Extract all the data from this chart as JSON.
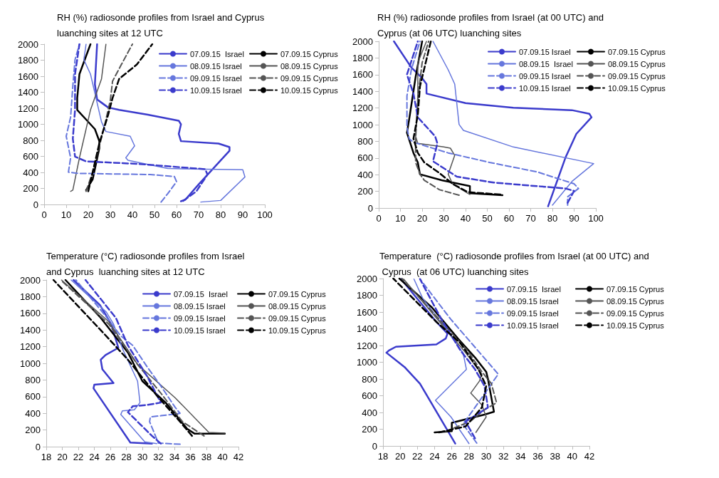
{
  "chart_data": [
    {
      "type": "line",
      "title": "RH (%) radiosonde profiles from Israel and Cyprus luanching sites at 12 UTC",
      "xlim": [
        0,
        100
      ],
      "xticks": [
        0,
        10,
        20,
        30,
        40,
        50,
        60,
        70,
        80,
        90,
        100
      ],
      "ylim": [
        0,
        2000
      ],
      "yticks": [
        0,
        200,
        400,
        600,
        800,
        1000,
        1200,
        1400,
        1600,
        1800,
        2000
      ],
      "legend": "top right",
      "marker": "none",
      "series": [
        {
          "name": "07.09.15  Israel",
          "color": "#3b3bcc",
          "line_style": "solid",
          "x": [
            62,
            64,
            70,
            84,
            84,
            79,
            62,
            61,
            62,
            61,
            47,
            34,
            29,
            24,
            23,
            24
          ],
          "values": [
            40,
            60,
            250,
            670,
            715,
            760,
            790,
            880,
            1000,
            1045,
            1120,
            1180,
            1210,
            1310,
            1500,
            2000
          ]
        },
        {
          "name": "07.09.15 Cyprus",
          "color": "#000000",
          "line_style": "solid",
          "x": [
            19,
            22,
            25,
            25,
            23,
            19,
            15,
            15,
            16,
            21
          ],
          "values": [
            179,
            313,
            701,
            791,
            940,
            1060,
            1179,
            1328,
            1627,
            2000
          ]
        },
        {
          "name": "08.09.15 Israel",
          "color": "#6677dd",
          "line_style": "solid",
          "x": [
            71,
            80,
            91,
            90,
            56,
            38,
            37,
            41,
            39,
            28,
            26,
            24,
            21,
            18,
            19
          ],
          "values": [
            30,
            50,
            343,
            433,
            448,
            552,
            582,
            731,
            851,
            910,
            1030,
            1269,
            1627,
            1806,
            2000
          ]
        },
        {
          "name": "08.09.15 Cyprus",
          "color": "#555555",
          "line_style": "solid",
          "x": [
            12,
            13,
            16,
            21,
            26,
            28
          ],
          "values": [
            164,
            179,
            582,
            1179,
            1567,
            2000
          ]
        },
        {
          "name": "09.09.15 Israel",
          "color": "#6677dd",
          "line_style": "dashed",
          "x": [
            53,
            56,
            60,
            59,
            48,
            15,
            11,
            12,
            10,
            12,
            13,
            14,
            16
          ],
          "values": [
            30,
            134,
            284,
            349,
            373,
            388,
            403,
            582,
            851,
            1090,
            1478,
            1806,
            2000
          ]
        },
        {
          "name": "09.09.15 Cyprus",
          "color": "#555555",
          "line_style": "dashed",
          "x": [
            19,
            22,
            27,
            30,
            31,
            35,
            40
          ],
          "values": [
            164,
            403,
            940,
            1299,
            1538,
            1746,
            2000
          ]
        },
        {
          "name": "10.09.15 Israel",
          "color": "#3b3bcc",
          "line_style": "dashed",
          "x": [
            63,
            69,
            74,
            73,
            42,
            19,
            14,
            13,
            14,
            14,
            16
          ],
          "values": [
            45,
            164,
            373,
            440,
            507,
            537,
            597,
            821,
            1179,
            1627,
            2000
          ]
        },
        {
          "name": "10.09.15 Cyprus",
          "color": "#000000",
          "line_style": "dashed",
          "x": [
            20,
            22,
            25,
            29,
            31,
            34,
            42,
            49
          ],
          "values": [
            164,
            403,
            761,
            1119,
            1328,
            1567,
            1746,
            2000
          ]
        }
      ]
    },
    {
      "type": "line",
      "title": "RH (%) radiosonde profiles from Israel (at 00 UTC) and Cyprus (at 06 UTC) luanching sites",
      "xlim": [
        0,
        100
      ],
      "xticks": [
        0,
        10,
        20,
        30,
        40,
        50,
        60,
        70,
        80,
        90,
        100
      ],
      "ylim": [
        0,
        2000
      ],
      "yticks": [
        0,
        200,
        400,
        600,
        800,
        1000,
        1200,
        1400,
        1600,
        1800,
        2000
      ],
      "legend": "top right",
      "marker": "none",
      "series": [
        {
          "name": "07.09.15 Israel",
          "color": "#3b3bcc",
          "line_style": "solid",
          "x": [
            78,
            86,
            91,
            98,
            97,
            89,
            62,
            40,
            22,
            22,
            20,
            15,
            7
          ],
          "values": [
            20,
            604,
            889,
            1088,
            1131,
            1174,
            1202,
            1259,
            1373,
            1487,
            1558,
            1687,
            2000
          ]
        },
        {
          "name": "07.09.15 Cyprus",
          "color": "#000000",
          "line_style": "solid",
          "x": [
            57,
            42,
            42,
            29,
            19,
            18,
            16,
            13,
            14,
            17,
            20
          ],
          "values": [
            154,
            177,
            262,
            333,
            405,
            547,
            661,
            903,
            1060,
            1573,
            2000
          ]
        },
        {
          "name": "08.09.15  Israel",
          "color": "#6677dd",
          "line_style": "solid",
          "x": [
            80,
            89,
            99,
            62,
            39,
            37,
            35,
            32,
            25
          ],
          "values": [
            34,
            319,
            533,
            732,
            932,
            1003,
            1487,
            1658,
            2000
          ]
        },
        {
          "name": "08.09.15 Cyprus",
          "color": "#555555",
          "line_style": "solid",
          "x": [
            42,
            34,
            32,
            35,
            33,
            30,
            18,
            17,
            18,
            18,
            22
          ],
          "values": [
            162,
            290,
            405,
            632,
            718,
            732,
            775,
            860,
            1316,
            1744,
            2000
          ]
        },
        {
          "name": "09.09.15 Israel",
          "color": "#6677dd",
          "line_style": "dashed",
          "x": [
            87,
            87,
            92,
            90,
            73,
            51,
            32,
            16,
            14,
            13,
            13,
            15,
            19
          ],
          "values": [
            34,
            134,
            234,
            290,
            433,
            547,
            661,
            789,
            832,
            974,
            1345,
            1658,
            2000
          ]
        },
        {
          "name": "09.09.15 Cyprus",
          "color": "#555555",
          "line_style": "dashed",
          "x": [
            37,
            28,
            21,
            19,
            17,
            17,
            18,
            20,
            23
          ],
          "values": [
            154,
            219,
            333,
            405,
            547,
            832,
            1316,
            1744,
            2000
          ]
        },
        {
          "name": "10.09.15 Israel",
          "color": "#3b3bcc",
          "line_style": "dashed",
          "x": [
            87,
            90,
            86,
            73,
            53,
            36,
            25,
            27,
            26,
            18,
            16,
            13,
            18
          ],
          "values": [
            63,
            205,
            234,
            262,
            305,
            376,
            561,
            775,
            860,
            1088,
            1373,
            1601,
            2000
          ]
        },
        {
          "name": "10.09.15 Cyprus",
          "color": "#000000",
          "line_style": "dashed",
          "x": [
            56,
            41,
            34,
            28,
            21,
            18,
            16,
            18,
            19,
            24
          ],
          "values": [
            162,
            191,
            290,
            419,
            547,
            661,
            832,
            1117,
            1459,
            2000
          ]
        }
      ]
    },
    {
      "type": "line",
      "title": "Temperature (°C) radiosonde profiles from Israel and Cyprus  luanching sites at 12 UTC",
      "xlim": [
        18,
        42
      ],
      "xticks": [
        18,
        20,
        22,
        24,
        26,
        28,
        30,
        32,
        34,
        36,
        38,
        40,
        42
      ],
      "ylim": [
        0,
        2000
      ],
      "yticks": [
        0,
        200,
        400,
        600,
        800,
        1000,
        1200,
        1400,
        1600,
        1800,
        2000
      ],
      "legend": "top right",
      "marker": "none",
      "series": [
        {
          "name": "07.09.15  Israel",
          "color": "#3b3bcc",
          "line_style": "solid",
          "x": [
            31.2,
            28.5,
            23.9,
            24,
            26.4,
            25,
            24.8,
            25.4,
            27,
            26.1,
            24.7,
            21.4
          ],
          "values": [
            37,
            49,
            700,
            743,
            763,
            929,
            1043,
            1100,
            1186,
            1471,
            1700,
            2000
          ]
        },
        {
          "name": "07.09.15 Cyprus",
          "color": "#000000",
          "line_style": "solid",
          "x": [
            40.3,
            36.5,
            35.6,
            32.9,
            30,
            28.2,
            24.7,
            20.4
          ],
          "values": [
            157,
            157,
            214,
            529,
            786,
            1129,
            1557,
            2000
          ]
        },
        {
          "name": "08.09.15 Israel",
          "color": "#6677dd",
          "line_style": "solid",
          "x": [
            31.8,
            30.3,
            27.3,
            27.5,
            29,
            29.7,
            29.4,
            27.6,
            26.4,
            25.5,
            21.1
          ],
          "values": [
            37,
            57,
            386,
            429,
            443,
            529,
            786,
            1157,
            1471,
            1614,
            2000
          ]
        },
        {
          "name": "08.09.15 Cyprus",
          "color": "#555555",
          "line_style": "solid",
          "x": [
            40.3,
            38.3,
            34.1,
            29.4,
            25.8,
            19.9
          ],
          "values": [
            163,
            171,
            586,
            986,
            1500,
            2000
          ]
        },
        {
          "name": "09.09.15 Israel",
          "color": "#6677dd",
          "line_style": "dashed",
          "x": [
            34.7,
            32,
            30.9,
            31,
            32.3,
            34.7,
            34.1,
            32.3,
            30.6,
            28.8,
            27.3,
            25.5,
            21.7
          ],
          "values": [
            29,
            43,
            300,
            357,
            371,
            400,
            471,
            729,
            957,
            1214,
            1329,
            1557,
            2000
          ]
        },
        {
          "name": "09.09.15 Cyprus",
          "color": "#555555",
          "line_style": "dashed",
          "x": [
            37.7,
            35,
            32.3,
            29.4,
            25.8,
            19.8
          ],
          "values": [
            129,
            300,
            643,
            986,
            1471,
            2000
          ]
        },
        {
          "name": "10.09.15 Israel",
          "color": "#3b3bcc",
          "line_style": "dashed",
          "x": [
            32.3,
            31.2,
            29.7,
            28.2,
            28.8,
            30.6,
            32.3,
            30.6,
            28.2,
            26.7,
            22.9
          ],
          "values": [
            37,
            129,
            271,
            414,
            486,
            500,
            529,
            843,
            1214,
            1543,
            2000
          ]
        },
        {
          "name": "10.09.15 Cyprus",
          "color": "#000000",
          "line_style": "dashed",
          "x": [
            36.2,
            34.7,
            31.8,
            28.2,
            25.2,
            18.9
          ],
          "values": [
            129,
            300,
            614,
            1043,
            1357,
            2000
          ]
        }
      ]
    },
    {
      "type": "line",
      "title": "Temperature  (°C) radiosonde profiles from Israel (at 00 UTC) and Cyprus  (at 06 UTC) luanching sites",
      "xlim": [
        18,
        42
      ],
      "xticks": [
        18,
        20,
        22,
        24,
        26,
        28,
        30,
        32,
        34,
        36,
        38,
        40,
        42
      ],
      "ylim": [
        0,
        2000
      ],
      "yticks": [
        0,
        200,
        400,
        600,
        800,
        1000,
        1200,
        1400,
        1600,
        1800,
        2000
      ],
      "legend": "top right",
      "marker": "none",
      "series": [
        {
          "name": "07.09.15  Israel",
          "color": "#3b3bcc",
          "line_style": "solid",
          "x": [
            26.4,
            22.3,
            20.5,
            18.4,
            18.7,
            19.5,
            24.2,
            25.3,
            25.5,
            24.2,
            20.1
          ],
          "values": [
            28,
            744,
            943,
            1114,
            1142,
            1185,
            1213,
            1284,
            1341,
            1483,
            1994
          ]
        },
        {
          "name": "07.09.15 Cyprus",
          "color": "#000000",
          "line_style": "solid",
          "x": [
            24,
            26,
            26,
            29.8,
            30.9,
            30.2,
            30,
            28.7,
            26.7,
            23.7,
            19.9
          ],
          "values": [
            162,
            176,
            276,
            375,
            409,
            801,
            886,
            1057,
            1284,
            1653,
            2000
          ]
        },
        {
          "name": "08.09.15 Israel",
          "color": "#6677dd",
          "line_style": "solid",
          "x": [
            28,
            25.9,
            24.1,
            27.7,
            27.3,
            25.1,
            22.6,
            21.6
          ],
          "values": [
            28,
            347,
            545,
            915,
            1114,
            1426,
            1767,
            1994
          ]
        },
        {
          "name": "08.09.15 Cyprus",
          "color": "#555555",
          "line_style": "solid",
          "x": [
            28.8,
            30,
            29.5,
            28.2,
            29.2,
            29.5,
            27.6,
            24.8,
            20.4
          ],
          "values": [
            162,
            347,
            489,
            631,
            773,
            858,
            1114,
            1455,
            1994
          ]
        },
        {
          "name": "09.09.15 Israel",
          "color": "#6677dd",
          "line_style": "dashed",
          "x": [
            28.9,
            27.3,
            28.5,
            31.4,
            25.9,
            22.3
          ],
          "values": [
            34,
            261,
            432,
            858,
            1511,
            1994
          ]
        },
        {
          "name": "09.09.15 Cyprus",
          "color": "#555555",
          "line_style": "dashed",
          "x": [
            25.3,
            28.1,
            29.8,
            31.2,
            30.6,
            29.5,
            27.8,
            24.8,
            20.2
          ],
          "values": [
            176,
            290,
            432,
            517,
            744,
            886,
            1142,
            1483,
            2000
          ]
        },
        {
          "name": "10.09.15 Israel",
          "color": "#3b3bcc",
          "line_style": "dashed",
          "x": [
            28.7,
            27.6,
            30.2,
            29.8,
            28.7,
            27,
            24.8,
            22.3
          ],
          "values": [
            91,
            290,
            460,
            716,
            915,
            1142,
            1511,
            1994
          ]
        },
        {
          "name": "10.09.15 Cyprus",
          "color": "#000000",
          "line_style": "dashed",
          "x": [
            24.5,
            27.6,
            29.5,
            30,
            29.1,
            27,
            24.2,
            22,
            19.2
          ],
          "values": [
            162,
            233,
            460,
            716,
            915,
            1227,
            1483,
            1710,
            2000
          ]
        }
      ]
    }
  ]
}
